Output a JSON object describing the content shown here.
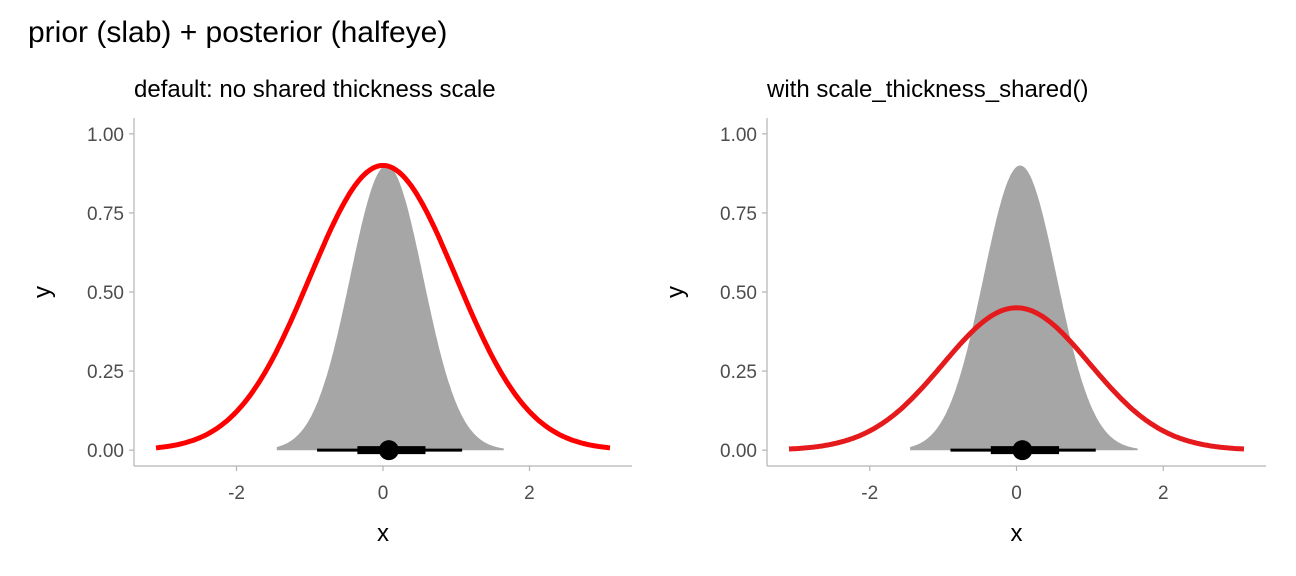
{
  "figure": {
    "title": "prior (slab) + posterior (halfeye)"
  },
  "colors": {
    "slab_fill": "#a6a6a6",
    "prior_left": "#ff0000",
    "prior_right": "#e41a1c",
    "interval": "#000000",
    "axis": "#b3b3b3",
    "tick_label": "#4d4d4d"
  },
  "chart_data": [
    {
      "type": "area",
      "title": "default: no shared thickness scale",
      "xlabel": "x",
      "ylabel": "y",
      "xlim": [
        -3.4,
        3.4
      ],
      "ylim": [
        -0.05,
        1.05
      ],
      "x_ticks": [
        -2,
        0,
        2
      ],
      "x_tick_labels": [
        "-2",
        "0",
        "2"
      ],
      "y_ticks": [
        0,
        0.25,
        0.5,
        0.75,
        1
      ],
      "y_tick_labels": [
        "0.00",
        "0.25",
        "0.50",
        "0.75",
        "1.00"
      ],
      "grid": false,
      "posterior_slab": {
        "mean": 0.05,
        "sd": 0.5,
        "x_range": [
          -1.45,
          1.65
        ],
        "max_height": 0.9
      },
      "prior_curve": {
        "mean": 0,
        "sd": 1,
        "x_range": [
          -3.1,
          3.1
        ],
        "max_height": 0.9
      },
      "point_interval": {
        "point": 0.08,
        "interval_66": [
          -0.35,
          0.58
        ],
        "interval_95": [
          -0.9,
          1.08
        ]
      }
    },
    {
      "type": "area",
      "title": "with scale_thickness_shared()",
      "xlabel": "x",
      "ylabel": "y",
      "xlim": [
        -3.4,
        3.4
      ],
      "ylim": [
        -0.05,
        1.05
      ],
      "x_ticks": [
        -2,
        0,
        2
      ],
      "x_tick_labels": [
        "-2",
        "0",
        "2"
      ],
      "y_ticks": [
        0,
        0.25,
        0.5,
        0.75,
        1
      ],
      "y_tick_labels": [
        "0.00",
        "0.25",
        "0.50",
        "0.75",
        "1.00"
      ],
      "grid": false,
      "posterior_slab": {
        "mean": 0.05,
        "sd": 0.5,
        "x_range": [
          -1.45,
          1.65
        ],
        "max_height": 0.9
      },
      "prior_curve": {
        "mean": 0,
        "sd": 1,
        "x_range": [
          -3.1,
          3.1
        ],
        "max_height": 0.45
      },
      "point_interval": {
        "point": 0.08,
        "interval_66": [
          -0.35,
          0.58
        ],
        "interval_95": [
          -0.9,
          1.08
        ]
      }
    }
  ]
}
